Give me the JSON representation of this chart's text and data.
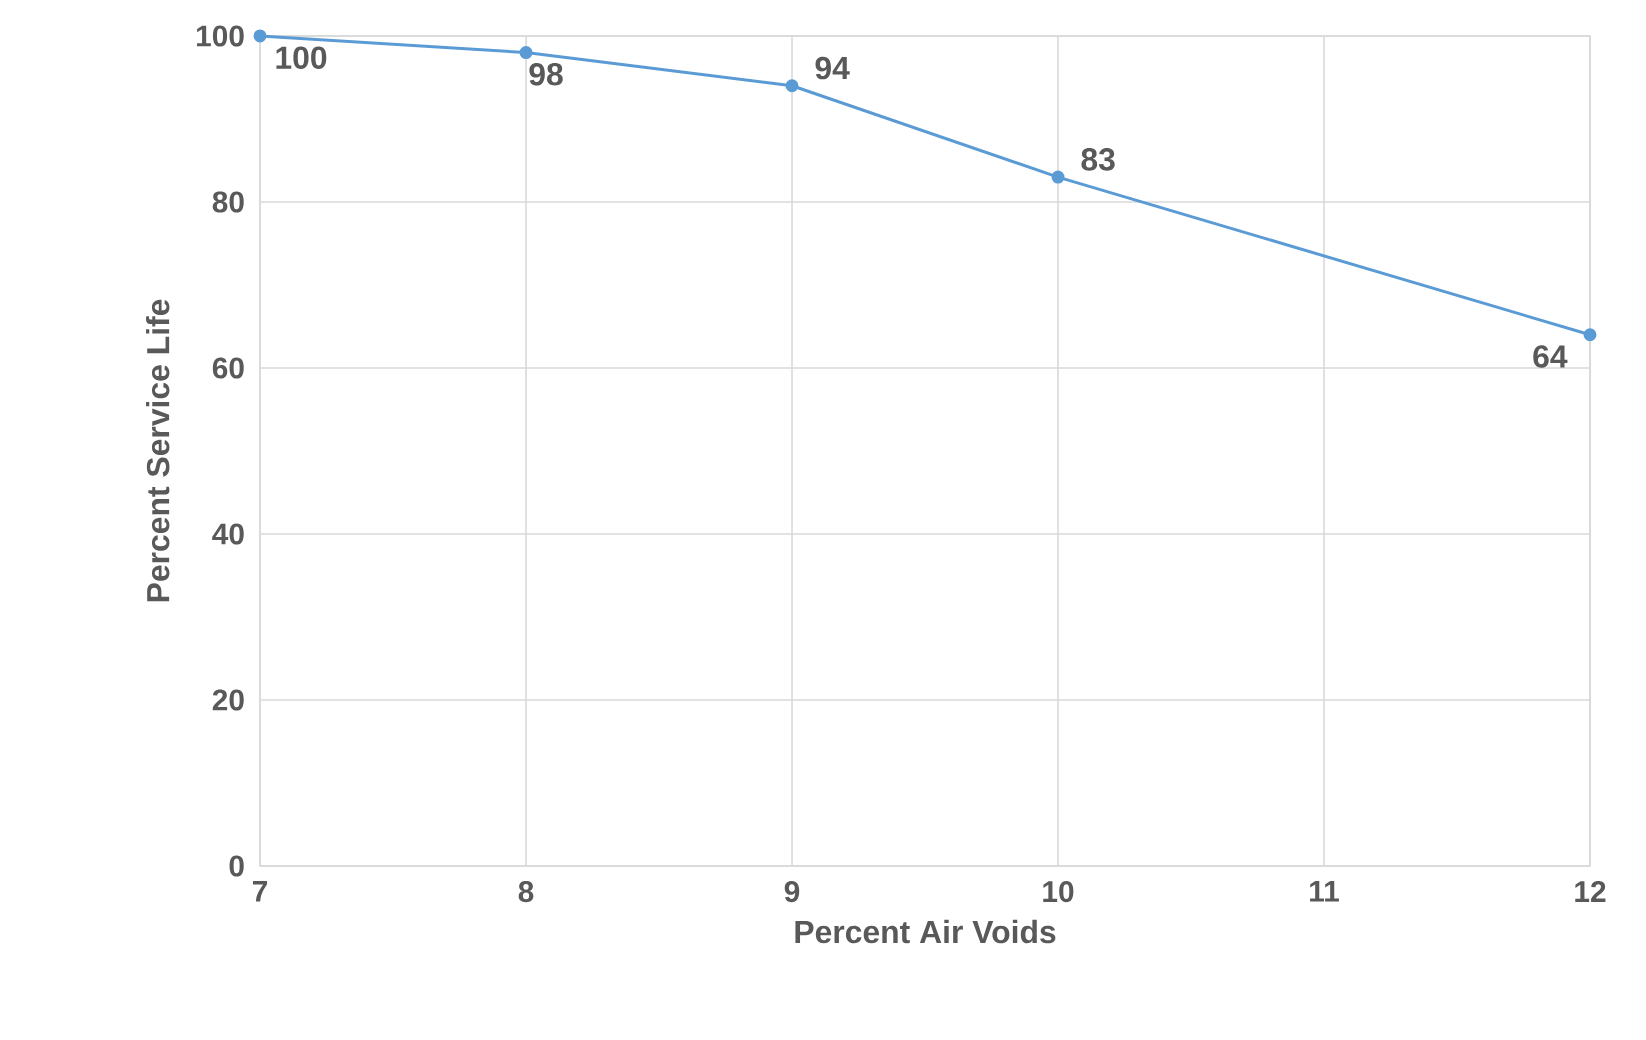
{
  "chart_data": {
    "type": "line",
    "xlabel": "Percent Air Voids",
    "ylabel": "Percent Service Life",
    "series": [
      {
        "color": "#5b9bd5",
        "x": [
          7,
          8,
          9,
          10,
          12
        ],
        "values": [
          100,
          98,
          94,
          83,
          64
        ]
      }
    ],
    "xlim": [
      7,
      12
    ],
    "ylim": [
      0,
      100
    ],
    "xticks": [
      7,
      8,
      9,
      10,
      11,
      12
    ],
    "yticks": [
      0,
      20,
      40,
      60,
      80,
      100
    ],
    "grid": true,
    "marker": "circle",
    "line_style": "solid",
    "data_labels": true
  }
}
